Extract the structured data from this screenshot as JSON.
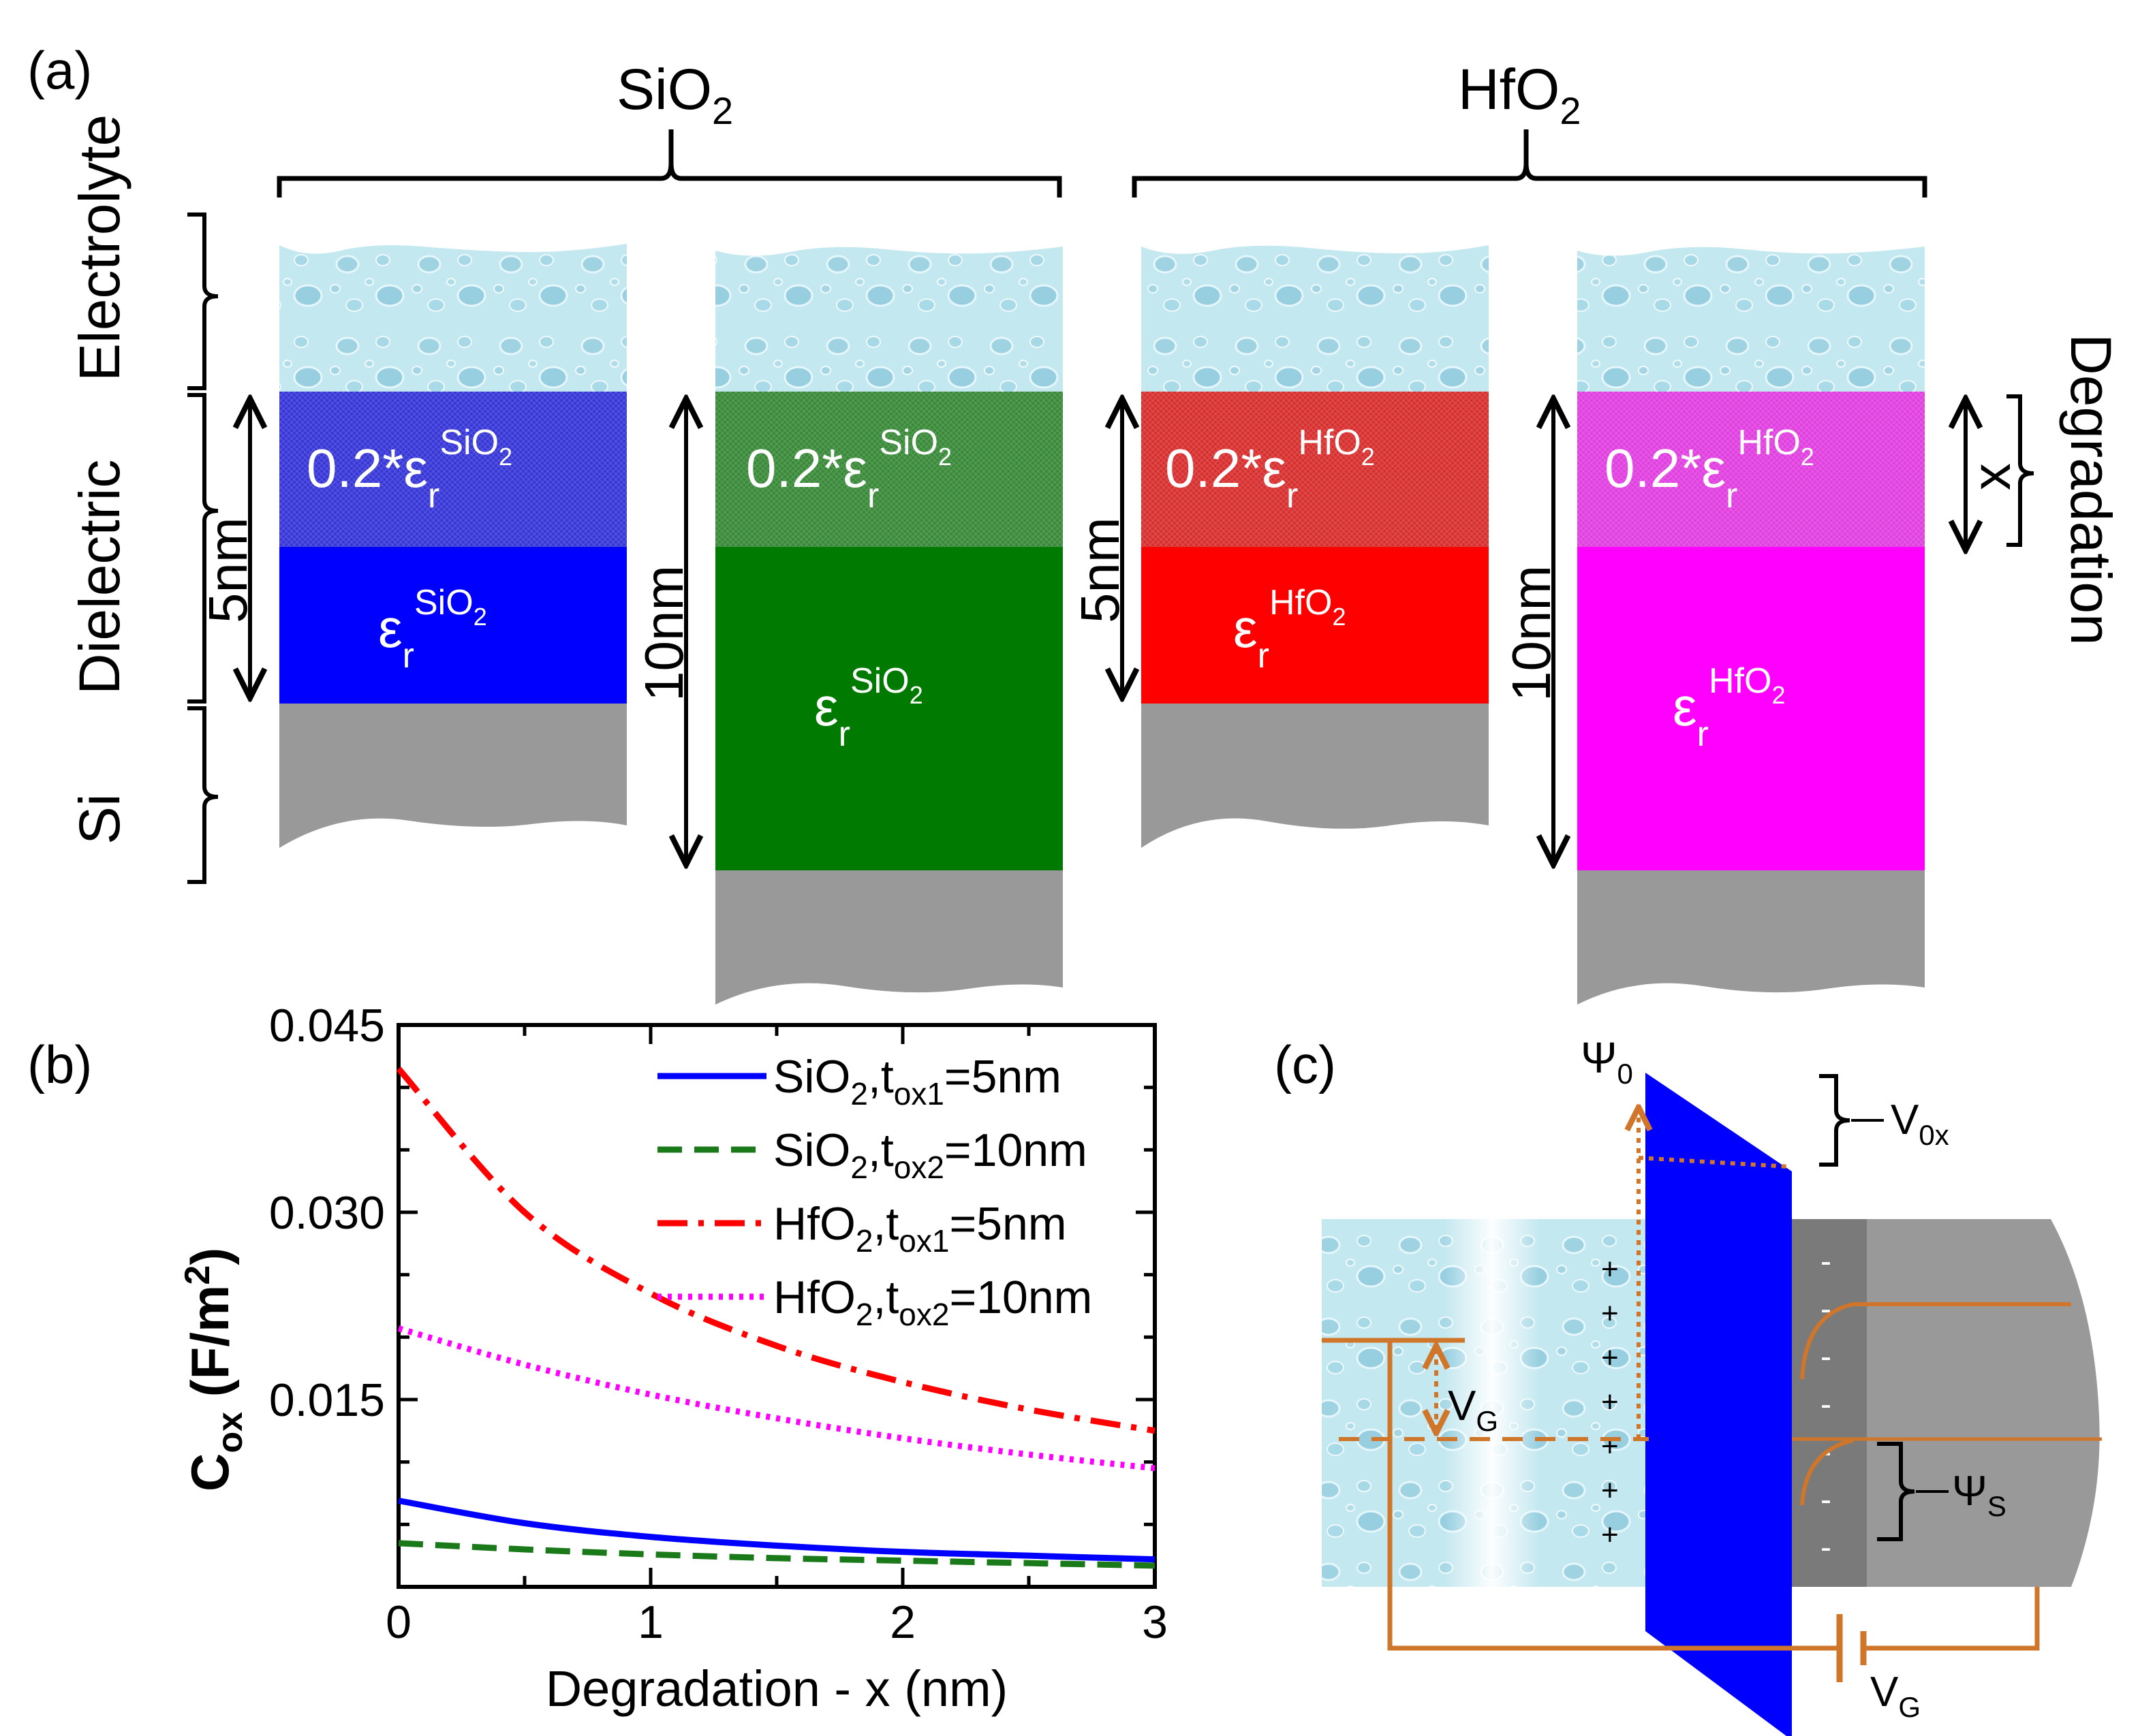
{
  "panel_a": {
    "panel_label": "(a)",
    "groups": [
      {
        "name": "SiO",
        "sub": "2"
      },
      {
        "name": "HfO",
        "sub": "2"
      }
    ],
    "layer_labels": {
      "electrolyte": "Electrolyte",
      "dielectric": "Dielectric",
      "si": "Si"
    },
    "degradation_label": "Degradation",
    "x_label": "x",
    "columns": [
      {
        "thickness": "5nm",
        "material": "SiO",
        "sub": "2",
        "degraded_prefix": "0.2*ε",
        "eps": "ε",
        "eps_sub": "r",
        "top_color": "#3838d8",
        "bottom_color": "#0000ff"
      },
      {
        "thickness": "10nm",
        "material": "SiO",
        "sub": "2",
        "degraded_prefix": "0.2*ε",
        "eps": "ε",
        "eps_sub": "r",
        "top_color": "#3a8a3a",
        "bottom_color": "#007a00"
      },
      {
        "thickness": "5nm",
        "material": "HfO",
        "sub": "2",
        "degraded_prefix": "0.2*ε",
        "eps": "ε",
        "eps_sub": "r",
        "top_color": "#d83030",
        "bottom_color": "#ff0000"
      },
      {
        "thickness": "10nm",
        "material": "HfO",
        "sub": "2",
        "degraded_prefix": "0.2*ε",
        "eps": "ε",
        "eps_sub": "r",
        "top_color": "#e040e0",
        "bottom_color": "#ff00ff"
      }
    ],
    "colors": {
      "electrolyte": "#bfe6ee",
      "si": "#999999"
    }
  },
  "chart_data": {
    "type": "line",
    "panel_label": "(b)",
    "xlabel": "Degradation - x (nm)",
    "ylabel": "C",
    "ylabel_sub": "ox",
    "ylabel_unit": " (F/m",
    "ylabel_unit_sup": "2",
    "ylabel_close": ")",
    "xlim": [
      0,
      3
    ],
    "ylim": [
      0,
      0.045
    ],
    "xticks": [
      0,
      1,
      2,
      3
    ],
    "xtick_labels": [
      "0",
      "1",
      "2",
      "3"
    ],
    "yticks": [
      0.015,
      0.03,
      0.045
    ],
    "ytick_labels": [
      "0.015",
      "0.030",
      "0.045"
    ],
    "x": [
      0,
      0.5,
      1,
      1.5,
      2,
      2.5,
      3
    ],
    "series": [
      {
        "name": "SiO2,tox1=5nm",
        "mat": "SiO",
        "tsub": "ox1",
        "val": "=5nm",
        "color": "#0000ff",
        "dash": "",
        "values": [
          0.0069,
          0.0051,
          0.004,
          0.0033,
          0.0028,
          0.0025,
          0.0022
        ]
      },
      {
        "name": "SiO2,tox2=10nm",
        "mat": "SiO",
        "tsub": "ox2",
        "val": "=10nm",
        "color": "#1a7a1a",
        "dash": "36,18",
        "values": [
          0.0035,
          0.003,
          0.0026,
          0.0023,
          0.0021,
          0.0019,
          0.0017
        ]
      },
      {
        "name": "HfO2,tox1=5nm",
        "mat": "HfO",
        "tsub": "ox1",
        "val": "=5nm",
        "color": "#ff0000",
        "dash": "44,16,8,16",
        "values": [
          0.0415,
          0.03,
          0.0235,
          0.0193,
          0.0164,
          0.0142,
          0.0125
        ]
      },
      {
        "name": "HfO2,tox2=10nm",
        "mat": "HfO",
        "tsub": "ox2",
        "val": "=10nm",
        "color": "#ff00ff",
        "dash": "6,9",
        "values": [
          0.0207,
          0.0178,
          0.0154,
          0.0135,
          0.0119,
          0.0106,
          0.0095
        ]
      }
    ],
    "legend_sub": "2",
    "legend_t": ",t"
  },
  "panel_c": {
    "panel_label": "(c)",
    "psi0": "Ψ",
    "psi0_sub": "0",
    "vox": "V",
    "vox_sub": "0x",
    "vg": "V",
    "vg_sub": "G",
    "psis": "Ψ",
    "psis_sub": "S",
    "plus": "+",
    "minus": "-",
    "colors": {
      "orange": "#d0762a",
      "oxide": "#0000ff"
    }
  }
}
